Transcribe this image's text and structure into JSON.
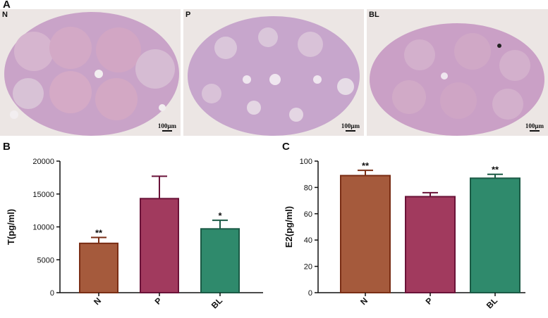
{
  "panel_a": {
    "letter": "A",
    "images": [
      {
        "label": "N",
        "scale_text": "100μm",
        "tissue_color": "#c9a3c8"
      },
      {
        "label": "P",
        "scale_text": "100μm",
        "tissue_color": "#c7a6cc"
      },
      {
        "label": "BL",
        "scale_text": "100μm",
        "tissue_color": "#caa0c6"
      }
    ]
  },
  "chart_data": [
    {
      "panel": "B",
      "type": "bar",
      "title": "",
      "xlabel": "",
      "ylabel": "T(pg/ml)",
      "categories": [
        "N",
        "P",
        "BL"
      ],
      "values": [
        7500,
        14300,
        9700
      ],
      "errors": [
        900,
        3400,
        1300
      ],
      "significance": [
        "**",
        "",
        "*"
      ],
      "ylim": [
        0,
        20000
      ],
      "yticks": [
        "0",
        "5000",
        "10000",
        "15000",
        "20000"
      ],
      "colors": [
        "#a55a3c",
        "#a13a5e",
        "#2f8a6c"
      ],
      "edge_colors": [
        "#7a2e15",
        "#6a1238",
        "#1b5a45"
      ],
      "grid": false
    },
    {
      "panel": "C",
      "type": "bar",
      "title": "",
      "xlabel": "",
      "ylabel": "E2(pg/ml)",
      "categories": [
        "N",
        "P",
        "BL"
      ],
      "values": [
        89,
        73,
        87
      ],
      "errors": [
        4,
        3,
        3
      ],
      "significance": [
        "**",
        "",
        "**"
      ],
      "ylim": [
        0,
        100
      ],
      "yticks": [
        "0",
        "20",
        "40",
        "60",
        "80",
        "100"
      ],
      "colors": [
        "#a55a3c",
        "#a13a5e",
        "#2f8a6c"
      ],
      "edge_colors": [
        "#7a2e15",
        "#6a1238",
        "#1b5a45"
      ],
      "grid": false
    }
  ]
}
